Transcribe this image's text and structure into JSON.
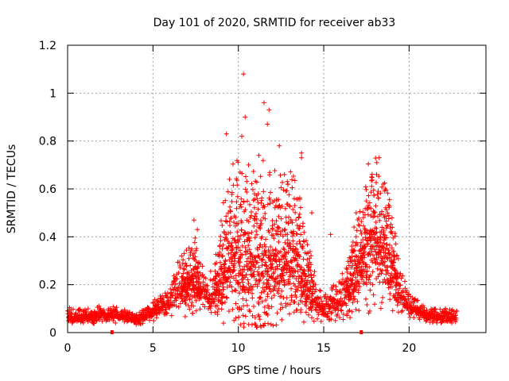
{
  "chart_data": {
    "type": "scatter",
    "title": "Day 101 of 2020, SRMTID for receiver ab33",
    "xlabel": "GPS time / hours",
    "ylabel": "SRMTID / TECUs",
    "xlim": [
      0,
      24.5
    ],
    "ylim": [
      0,
      1.2
    ],
    "xticks": [
      0,
      5,
      10,
      15,
      20
    ],
    "xtick_labels": [
      "0",
      "5",
      "10",
      "15",
      "20"
    ],
    "yticks": [
      0,
      0.2,
      0.4,
      0.6,
      0.8,
      1.0,
      1.2
    ],
    "ytick_labels": [
      "0",
      "0.2",
      "0.4",
      "0.6",
      "0.8",
      "1",
      "1.2"
    ],
    "grid": true,
    "marker": "plus",
    "color": "#ff0000",
    "baseline_markers_x": [
      2.6,
      17.2
    ],
    "series": [
      {
        "name": "SRMTID",
        "profile_x": [
          0,
          1,
          2,
          3,
          4,
          5,
          5.5,
          6,
          6.5,
          7,
          7.5,
          8,
          8.5,
          9,
          9.5,
          10,
          10.5,
          11,
          11.5,
          12,
          12.5,
          13,
          13.5,
          14,
          14.5,
          15,
          15.5,
          16,
          16.5,
          17,
          17.5,
          18,
          18.5,
          19,
          19.5,
          20,
          21,
          22,
          22.8
        ],
        "profile_center": [
          0.06,
          0.06,
          0.07,
          0.07,
          0.05,
          0.08,
          0.1,
          0.12,
          0.17,
          0.19,
          0.2,
          0.15,
          0.14,
          0.22,
          0.3,
          0.27,
          0.25,
          0.26,
          0.27,
          0.26,
          0.27,
          0.3,
          0.26,
          0.19,
          0.12,
          0.09,
          0.1,
          0.12,
          0.17,
          0.25,
          0.32,
          0.35,
          0.34,
          0.26,
          0.15,
          0.1,
          0.07,
          0.06,
          0.06
        ],
        "profile_spread": [
          0.03,
          0.03,
          0.03,
          0.03,
          0.02,
          0.04,
          0.04,
          0.06,
          0.09,
          0.12,
          0.14,
          0.07,
          0.08,
          0.18,
          0.25,
          0.32,
          0.28,
          0.3,
          0.35,
          0.3,
          0.26,
          0.25,
          0.25,
          0.16,
          0.08,
          0.05,
          0.06,
          0.07,
          0.12,
          0.18,
          0.24,
          0.27,
          0.24,
          0.17,
          0.08,
          0.05,
          0.03,
          0.03,
          0.03
        ],
        "outliers": [
          {
            "x": 10.3,
            "y": 1.08
          },
          {
            "x": 11.5,
            "y": 0.96
          },
          {
            "x": 11.8,
            "y": 0.93
          },
          {
            "x": 9.3,
            "y": 0.83
          },
          {
            "x": 10.4,
            "y": 0.9
          },
          {
            "x": 10.2,
            "y": 0.82
          },
          {
            "x": 11.7,
            "y": 0.87
          },
          {
            "x": 12.4,
            "y": 0.78
          },
          {
            "x": 13.7,
            "y": 0.75
          },
          {
            "x": 13.7,
            "y": 0.73
          },
          {
            "x": 11.2,
            "y": 0.74
          },
          {
            "x": 10.6,
            "y": 0.7
          },
          {
            "x": 10.1,
            "y": 0.67
          },
          {
            "x": 12.7,
            "y": 0.66
          },
          {
            "x": 12.9,
            "y": 0.62
          },
          {
            "x": 18.1,
            "y": 0.66
          },
          {
            "x": 17.8,
            "y": 0.65
          },
          {
            "x": 18.6,
            "y": 0.6
          },
          {
            "x": 17.5,
            "y": 0.55
          },
          {
            "x": 7.4,
            "y": 0.47
          },
          {
            "x": 7.6,
            "y": 0.43
          },
          {
            "x": 16.9,
            "y": 0.5
          },
          {
            "x": 15.4,
            "y": 0.41
          },
          {
            "x": 14.3,
            "y": 0.5
          }
        ]
      }
    ]
  }
}
